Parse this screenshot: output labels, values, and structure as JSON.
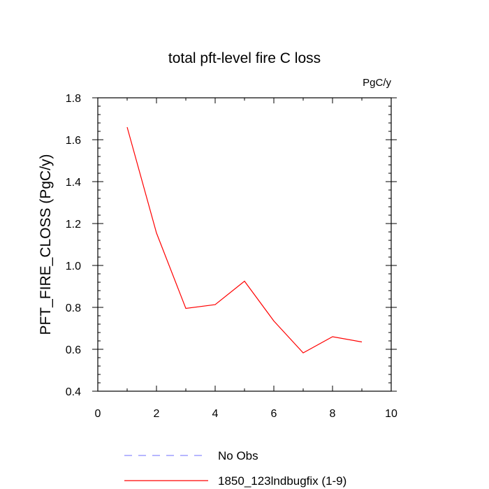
{
  "chart_data": {
    "type": "line",
    "title": "total pft-level fire C loss",
    "units_label": "PgC/y",
    "xlabel": "",
    "ylabel": "PFT_FIRE_CLOSS  (PgC/y)",
    "xlim": [
      0,
      10
    ],
    "ylim": [
      0.4,
      1.8
    ],
    "x_ticks": [
      "0",
      "2",
      "4",
      "6",
      "8",
      "10"
    ],
    "y_ticks": [
      "0.4",
      "0.6",
      "0.8",
      "1.0",
      "1.2",
      "1.4",
      "1.6",
      "1.8"
    ],
    "grid": false,
    "legend_position": "bottom",
    "series": [
      {
        "name": "No Obs",
        "color": "#8c8cff",
        "dash": "dashed",
        "x": [],
        "y": []
      },
      {
        "name": "1850_123lndbugfix (1-9)",
        "color": "#ff0000",
        "dash": "solid",
        "x": [
          1,
          2,
          3,
          4,
          5,
          6,
          7,
          8,
          9
        ],
        "y": [
          1.66,
          1.155,
          0.795,
          0.813,
          0.925,
          0.735,
          0.583,
          0.66,
          0.635
        ]
      }
    ]
  }
}
